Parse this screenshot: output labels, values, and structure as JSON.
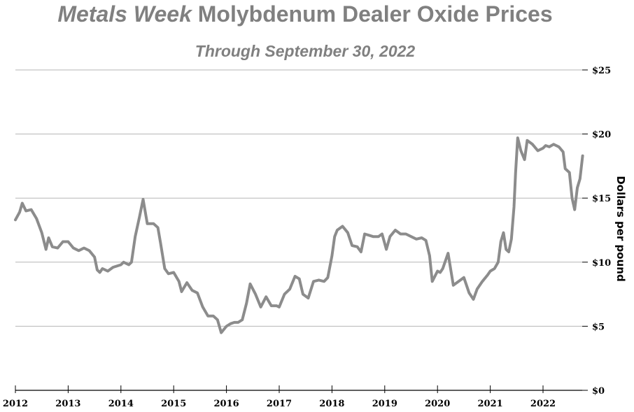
{
  "chart_data": {
    "type": "line",
    "title_italic": "Metals Week",
    "title_rest": " Molybdenum Dealer Oxide Prices",
    "subtitle": "Through September 30, 2022",
    "ylabel": "Dollars per pound",
    "xlabel": "",
    "xlim": [
      2012,
      2022.75
    ],
    "ylim": [
      0,
      25
    ],
    "yticks": [
      0,
      5,
      10,
      15,
      20,
      25
    ],
    "ytick_labels": [
      "$0",
      "$5",
      "$10",
      "$15",
      "$20",
      "$25"
    ],
    "xticks": [
      2012,
      2013,
      2014,
      2015,
      2016,
      2017,
      2018,
      2019,
      2020,
      2021,
      2022
    ],
    "xtick_labels": [
      "2012",
      "2013",
      "2014",
      "2015",
      "2016",
      "2017",
      "2018",
      "2019",
      "2020",
      "2021",
      "2022"
    ],
    "grid": "horizontal",
    "line_color": "#8c8c8c",
    "series": [
      {
        "x": [
          2012.0,
          2012.08,
          2012.13,
          2012.2,
          2012.3,
          2012.4,
          2012.5,
          2012.58,
          2012.63,
          2012.7,
          2012.8,
          2012.9,
          2013.0,
          2013.1,
          2013.2,
          2013.3,
          2013.4,
          2013.5,
          2013.55,
          2013.6,
          2013.65,
          2013.75,
          2013.85,
          2014.0,
          2014.05,
          2014.15,
          2014.2,
          2014.27,
          2014.35,
          2014.42,
          2014.5,
          2014.55,
          2014.62,
          2014.7,
          2014.75,
          2014.83,
          2014.9,
          2015.0,
          2015.1,
          2015.15,
          2015.25,
          2015.35,
          2015.45,
          2015.55,
          2015.65,
          2015.75,
          2015.83,
          2015.9,
          2016.0,
          2016.08,
          2016.15,
          2016.22,
          2016.3,
          2016.38,
          2016.45,
          2016.55,
          2016.65,
          2016.75,
          2016.85,
          2016.95,
          2017.0,
          2017.1,
          2017.2,
          2017.3,
          2017.38,
          2017.45,
          2017.55,
          2017.65,
          2017.75,
          2017.85,
          2017.92,
          2018.0,
          2018.05,
          2018.1,
          2018.2,
          2018.3,
          2018.38,
          2018.48,
          2018.55,
          2018.62,
          2018.7,
          2018.78,
          2018.88,
          2018.95,
          2019.03,
          2019.1,
          2019.2,
          2019.3,
          2019.4,
          2019.5,
          2019.6,
          2019.7,
          2019.78,
          2019.85,
          2019.9,
          2020.0,
          2020.05,
          2020.1,
          2020.2,
          2020.3,
          2020.4,
          2020.5,
          2020.6,
          2020.68,
          2020.75,
          2020.85,
          2020.95,
          2021.0,
          2021.08,
          2021.15,
          2021.2,
          2021.25,
          2021.3,
          2021.35,
          2021.4,
          2021.45,
          2021.48,
          2021.52,
          2021.58,
          2021.65,
          2021.7,
          2021.8,
          2021.9,
          2022.0,
          2022.05,
          2022.12,
          2022.2,
          2022.3,
          2022.38,
          2022.42,
          2022.5,
          2022.55,
          2022.6,
          2022.65,
          2022.7,
          2022.75
        ],
        "y": [
          13.3,
          13.9,
          14.6,
          14.0,
          14.1,
          13.4,
          12.3,
          11.0,
          11.9,
          11.2,
          11.1,
          11.6,
          11.6,
          11.1,
          10.9,
          11.1,
          10.9,
          10.4,
          9.4,
          9.2,
          9.5,
          9.3,
          9.6,
          9.8,
          10.0,
          9.8,
          10.0,
          12.0,
          13.5,
          14.9,
          13.0,
          13.0,
          13.0,
          12.7,
          11.5,
          9.5,
          9.1,
          9.2,
          8.5,
          7.7,
          8.4,
          7.8,
          7.6,
          6.5,
          5.8,
          5.8,
          5.5,
          4.5,
          5.0,
          5.2,
          5.3,
          5.3,
          5.5,
          6.8,
          8.3,
          7.5,
          6.5,
          7.3,
          6.6,
          6.6,
          6.5,
          7.5,
          7.9,
          8.9,
          8.7,
          7.5,
          7.2,
          8.5,
          8.6,
          8.5,
          8.8,
          10.5,
          12.0,
          12.5,
          12.8,
          12.3,
          11.3,
          11.2,
          10.8,
          12.2,
          12.1,
          12.0,
          12.0,
          12.2,
          11.0,
          12.0,
          12.5,
          12.2,
          12.2,
          12.0,
          11.8,
          11.9,
          11.7,
          10.5,
          8.5,
          9.3,
          9.2,
          9.5,
          10.7,
          8.2,
          8.5,
          8.8,
          7.6,
          7.1,
          7.9,
          8.5,
          9.0,
          9.3,
          9.5,
          10.0,
          11.6,
          12.3,
          11.0,
          10.8,
          11.8,
          14.3,
          17.0,
          19.7,
          18.7,
          18.0,
          19.5,
          19.2,
          18.7,
          18.9,
          19.1,
          19.0,
          19.2,
          19.0,
          18.6,
          17.3,
          17.0,
          15.0,
          14.1,
          15.8,
          16.5,
          18.3
        ]
      }
    ]
  }
}
